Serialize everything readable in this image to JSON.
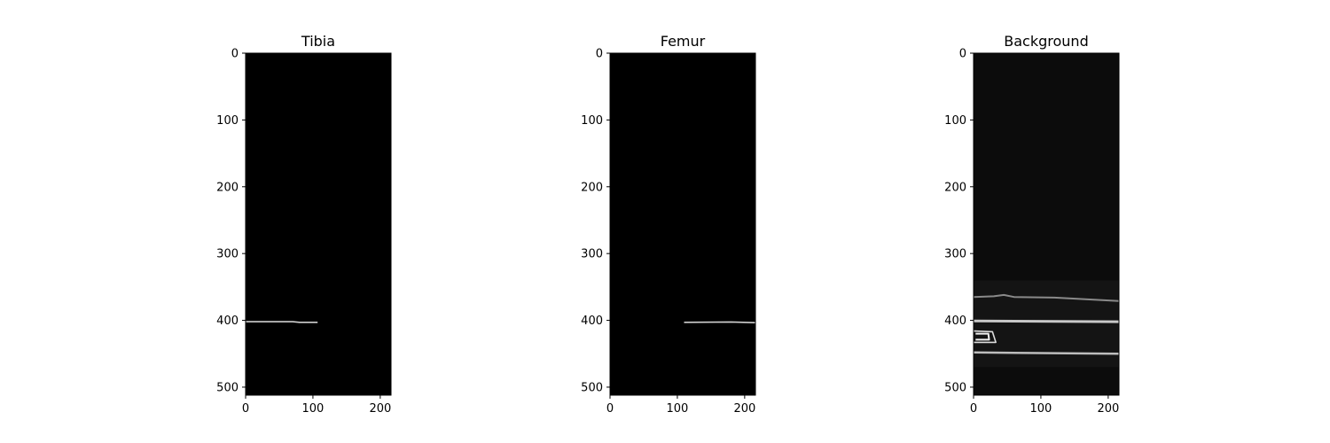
{
  "chart_data": [
    {
      "type": "heatmap",
      "title": "Tibia",
      "xlim": [
        0,
        216
      ],
      "ylim": [
        512,
        0
      ],
      "xticks": [
        0,
        100,
        200
      ],
      "yticks": [
        0,
        100,
        200,
        300,
        400,
        500
      ],
      "background": "#000000",
      "features": [
        {
          "kind": "line",
          "points": [
            [
              0,
              402
            ],
            [
              70,
              402
            ],
            [
              80,
              403
            ],
            [
              107,
              403
            ]
          ],
          "color": "#d0d0d0",
          "width": 1.6
        }
      ]
    },
    {
      "type": "heatmap",
      "title": "Femur",
      "xlim": [
        0,
        216
      ],
      "ylim": [
        512,
        0
      ],
      "xticks": [
        0,
        100,
        200
      ],
      "yticks": [
        0,
        100,
        200,
        300,
        400,
        500
      ],
      "background": "#000000",
      "features": [
        {
          "kind": "line",
          "points": [
            [
              110,
              403
            ],
            [
              180,
              402.5
            ],
            [
              216,
              403.5
            ]
          ],
          "color": "#d0d0d0",
          "width": 1.6
        }
      ]
    },
    {
      "type": "heatmap",
      "title": "Background",
      "xlim": [
        0,
        216
      ],
      "ylim": [
        512,
        0
      ],
      "xticks": [
        0,
        100,
        200
      ],
      "yticks": [
        0,
        100,
        200,
        300,
        400,
        500
      ],
      "background": "#0c0c0c",
      "features": [
        {
          "kind": "line",
          "points": [
            [
              0,
              365
            ],
            [
              30,
              364
            ],
            [
              45,
              362
            ],
            [
              60,
              365
            ],
            [
              120,
              366
            ],
            [
              216,
              371
            ]
          ],
          "color": "#8a8a8a",
          "width": 2
        },
        {
          "kind": "line",
          "points": [
            [
              0,
              401
            ],
            [
              216,
              402
            ]
          ],
          "color": "#c8c8c8",
          "width": 3
        },
        {
          "kind": "line",
          "points": [
            [
              0,
              448
            ],
            [
              216,
              450
            ]
          ],
          "color": "#bdbdbd",
          "width": 2.5
        },
        {
          "kind": "line",
          "points": [
            [
              0,
              416
            ],
            [
              28,
              417
            ],
            [
              33,
              433
            ],
            [
              0,
              433
            ]
          ],
          "color": "#dcdcdc",
          "width": 1.6
        },
        {
          "kind": "line",
          "points": [
            [
              3,
              420
            ],
            [
              22,
              420
            ],
            [
              23,
              429
            ],
            [
              3,
              429
            ]
          ],
          "color": "#f0f0f0",
          "width": 2
        }
      ]
    }
  ]
}
